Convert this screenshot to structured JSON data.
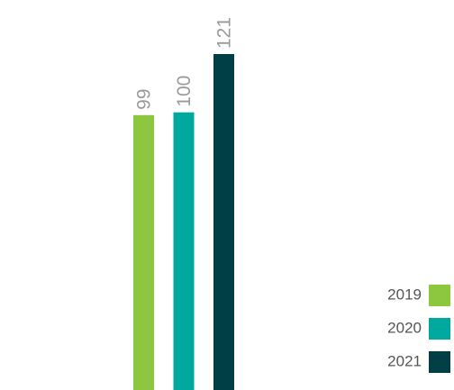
{
  "chart_data": {
    "type": "bar",
    "series": [
      {
        "name": "2019",
        "color": "#8dc63f",
        "values": [
          99
        ]
      },
      {
        "name": "2020",
        "color": "#00a99d",
        "values": [
          100
        ]
      },
      {
        "name": "2021",
        "color": "#003f46",
        "values": [
          121
        ]
      }
    ],
    "legend": "lower right"
  }
}
